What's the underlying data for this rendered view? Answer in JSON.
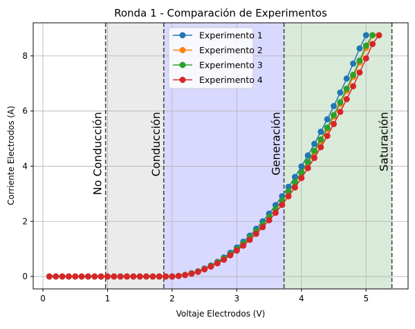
{
  "chart_data": {
    "type": "line",
    "title": "Ronda 1 - Comparación de Experimentos",
    "xlabel": "Voltaje Electrodos (V)",
    "ylabel": "Corriente Electrodos (A)",
    "xlim": [
      -0.15,
      5.65
    ],
    "ylim": [
      -0.45,
      9.2
    ],
    "xticks": [
      0,
      1,
      2,
      3,
      4,
      5
    ],
    "yticks": [
      0,
      2,
      4,
      6,
      8
    ],
    "grid": true,
    "legend_position": "top-center",
    "regions": [
      {
        "label": "No Conducción",
        "x0": null,
        "x1": 0.97,
        "color": "#ffffff"
      },
      {
        "label": "Conducción",
        "x0": 0.97,
        "x1": 1.87,
        "color": "#ebebeb"
      },
      {
        "label": "Generación",
        "x0": 1.87,
        "x1": 3.73,
        "color": "#d9d9ff"
      },
      {
        "label": "Saturación",
        "x0": 3.73,
        "x1": 5.4,
        "color": "#d9ead9"
      }
    ],
    "region_lines": [
      0.97,
      1.87,
      3.73,
      5.4
    ],
    "x": [
      0.1,
      0.2,
      0.3,
      0.4,
      0.5,
      0.6,
      0.7,
      0.8,
      0.9,
      1.0,
      1.1,
      1.2,
      1.3,
      1.4,
      1.5,
      1.6,
      1.7,
      1.8,
      1.9,
      2.0,
      2.1,
      2.2,
      2.3,
      2.4,
      2.5,
      2.6,
      2.7,
      2.8,
      2.9,
      3.0,
      3.1,
      3.2,
      3.3,
      3.4,
      3.5,
      3.6,
      3.7,
      3.8,
      3.9,
      4.0,
      4.1,
      4.2,
      4.3,
      4.4,
      4.5,
      4.6,
      4.7,
      4.8,
      4.9,
      5.0,
      5.1,
      5.2
    ],
    "series": [
      {
        "name": "Experimento 1",
        "color": "#1f77b4",
        "values": [
          0,
          0,
          0,
          0,
          0,
          0,
          0,
          0,
          0,
          0,
          0,
          0,
          0,
          0,
          0,
          0,
          0,
          0,
          0,
          0,
          0.02,
          0.06,
          0.12,
          0.19,
          0.29,
          0.4,
          0.53,
          0.69,
          0.86,
          1.05,
          1.26,
          1.48,
          1.73,
          2.0,
          2.28,
          2.59,
          2.91,
          3.25,
          3.61,
          3.99,
          4.39,
          4.81,
          5.25,
          5.7,
          6.18,
          6.67,
          7.18,
          7.72,
          8.27,
          8.75,
          null,
          null
        ]
      },
      {
        "name": "Experimento 2",
        "color": "#ff7f0e",
        "values": [
          0,
          0,
          0,
          0,
          0,
          0,
          0,
          0,
          0,
          0,
          0,
          0,
          0,
          0,
          0,
          0,
          0,
          0,
          0,
          0,
          0.02,
          0.06,
          0.11,
          0.18,
          0.27,
          0.38,
          0.5,
          0.64,
          0.8,
          0.98,
          1.18,
          1.39,
          1.62,
          1.87,
          2.14,
          2.43,
          2.73,
          3.05,
          3.39,
          3.75,
          4.12,
          4.51,
          4.92,
          5.35,
          5.8,
          6.26,
          6.74,
          7.24,
          7.76,
          8.29,
          8.75,
          8.75
        ]
      },
      {
        "name": "Experimento 3",
        "color": "#2ca02c",
        "values": [
          0,
          0,
          0,
          0,
          0,
          0,
          0,
          0,
          0,
          0,
          0,
          0,
          0,
          0,
          0,
          0,
          0,
          0,
          0,
          0,
          0.02,
          0.06,
          0.11,
          0.18,
          0.27,
          0.38,
          0.51,
          0.65,
          0.81,
          0.99,
          1.19,
          1.41,
          1.64,
          1.89,
          2.16,
          2.45,
          2.76,
          3.08,
          3.42,
          3.78,
          4.16,
          4.56,
          4.97,
          5.4,
          5.85,
          6.32,
          6.81,
          7.31,
          7.83,
          8.37,
          8.75,
          null
        ]
      },
      {
        "name": "Experimento 4",
        "color": "#d62728",
        "values": [
          0,
          0,
          0,
          0,
          0,
          0,
          0,
          0,
          0,
          0,
          0,
          0,
          0,
          0,
          0,
          0,
          0,
          0,
          0,
          0,
          0.02,
          0.05,
          0.1,
          0.17,
          0.26,
          0.36,
          0.48,
          0.61,
          0.77,
          0.94,
          1.12,
          1.33,
          1.55,
          1.79,
          2.04,
          2.31,
          2.6,
          2.91,
          3.23,
          3.57,
          3.93,
          4.3,
          4.69,
          5.1,
          5.53,
          5.97,
          6.43,
          6.9,
          7.4,
          7.91,
          8.43,
          8.75
        ]
      }
    ]
  }
}
